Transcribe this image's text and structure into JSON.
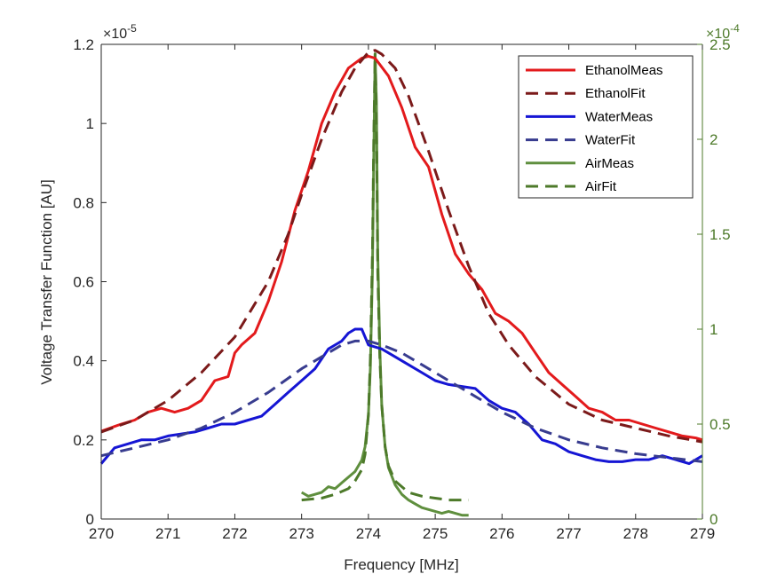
{
  "chart_data": {
    "type": "line",
    "xlabel": "Frequency [MHz]",
    "ylabel": "Voltage Transfer Function [AU]",
    "xlim": [
      270,
      279
    ],
    "ylim_left": [
      0,
      1.2e-05
    ],
    "ylim_right": [
      0,
      0.00025
    ],
    "x_ticks": [
      "270",
      "271",
      "272",
      "273",
      "274",
      "275",
      "276",
      "277",
      "278",
      "279"
    ],
    "y_ticks_left": [
      "0",
      "0.2",
      "0.4",
      "0.6",
      "0.8",
      "1",
      "1.2"
    ],
    "y_ticks_right": [
      "0",
      "0.5",
      "1",
      "1.5",
      "2",
      "2.5"
    ],
    "left_exponent": {
      "base": "×10",
      "power": "-5"
    },
    "right_exponent": {
      "base": "×10",
      "power": "-4"
    },
    "legend_position": "top-right",
    "grid": false,
    "series": [
      {
        "name": "EthanolMeas",
        "axis": "left",
        "color": "#e31a1c",
        "style": "solid",
        "x": [
          270.0,
          270.3,
          270.5,
          270.7,
          270.9,
          271.1,
          271.3,
          271.5,
          271.7,
          271.9,
          272.0,
          272.1,
          272.3,
          272.5,
          272.7,
          272.9,
          273.1,
          273.3,
          273.5,
          273.7,
          273.9,
          274.0,
          274.1,
          274.3,
          274.5,
          274.7,
          274.9,
          275.1,
          275.3,
          275.5,
          275.7,
          275.9,
          276.1,
          276.3,
          276.5,
          276.7,
          276.9,
          277.1,
          277.3,
          277.5,
          277.7,
          277.9,
          278.1,
          278.3,
          278.5,
          278.7,
          278.9,
          279.0
        ],
        "y": [
          0.222,
          0.24,
          0.25,
          0.27,
          0.28,
          0.27,
          0.28,
          0.3,
          0.35,
          0.36,
          0.42,
          0.44,
          0.47,
          0.55,
          0.65,
          0.78,
          0.88,
          1.0,
          1.08,
          1.14,
          1.165,
          1.17,
          1.165,
          1.12,
          1.04,
          0.94,
          0.89,
          0.77,
          0.67,
          0.62,
          0.58,
          0.52,
          0.5,
          0.47,
          0.42,
          0.37,
          0.34,
          0.31,
          0.28,
          0.27,
          0.25,
          0.25,
          0.24,
          0.23,
          0.22,
          0.21,
          0.205,
          0.2
        ]
      },
      {
        "name": "EthanolFit",
        "axis": "left",
        "color": "#7b1a1a",
        "style": "dashed",
        "x": [
          270.0,
          270.5,
          271.0,
          271.5,
          272.0,
          272.5,
          272.8,
          273.0,
          273.3,
          273.6,
          273.8,
          274.0,
          274.1,
          274.2,
          274.4,
          274.6,
          274.9,
          275.2,
          275.5,
          275.8,
          276.1,
          276.5,
          277.0,
          277.5,
          278.0,
          278.5,
          279.0
        ],
        "y": [
          0.22,
          0.25,
          0.3,
          0.37,
          0.46,
          0.6,
          0.72,
          0.82,
          0.96,
          1.08,
          1.14,
          1.18,
          1.185,
          1.175,
          1.14,
          1.07,
          0.93,
          0.78,
          0.64,
          0.52,
          0.44,
          0.36,
          0.29,
          0.25,
          0.23,
          0.21,
          0.195
        ]
      },
      {
        "name": "WaterMeas",
        "axis": "left",
        "color": "#1515d4",
        "style": "solid",
        "x": [
          270.0,
          270.2,
          270.4,
          270.6,
          270.8,
          271.0,
          271.2,
          271.4,
          271.6,
          271.8,
          272.0,
          272.2,
          272.4,
          272.6,
          272.8,
          273.0,
          273.2,
          273.4,
          273.6,
          273.7,
          273.8,
          273.9,
          274.0,
          274.2,
          274.4,
          274.6,
          274.8,
          275.0,
          275.2,
          275.4,
          275.6,
          275.8,
          276.0,
          276.2,
          276.4,
          276.6,
          276.8,
          277.0,
          277.2,
          277.4,
          277.6,
          277.8,
          278.0,
          278.2,
          278.4,
          278.6,
          278.8,
          279.0
        ],
        "y": [
          0.14,
          0.18,
          0.19,
          0.2,
          0.2,
          0.21,
          0.215,
          0.22,
          0.23,
          0.24,
          0.24,
          0.25,
          0.26,
          0.29,
          0.32,
          0.35,
          0.38,
          0.43,
          0.45,
          0.47,
          0.48,
          0.48,
          0.44,
          0.43,
          0.41,
          0.39,
          0.37,
          0.35,
          0.34,
          0.335,
          0.33,
          0.3,
          0.28,
          0.27,
          0.24,
          0.2,
          0.19,
          0.17,
          0.16,
          0.15,
          0.145,
          0.145,
          0.15,
          0.15,
          0.16,
          0.15,
          0.14,
          0.16
        ]
      },
      {
        "name": "WaterFit",
        "axis": "left",
        "color": "#383c8f",
        "style": "dashed",
        "x": [
          270.0,
          270.5,
          271.0,
          271.5,
          272.0,
          272.5,
          273.0,
          273.3,
          273.6,
          273.8,
          274.0,
          274.2,
          274.5,
          274.8,
          275.2,
          275.6,
          276.0,
          276.5,
          277.0,
          277.5,
          278.0,
          278.5,
          279.0
        ],
        "y": [
          0.16,
          0.18,
          0.2,
          0.23,
          0.27,
          0.32,
          0.38,
          0.41,
          0.44,
          0.45,
          0.45,
          0.44,
          0.42,
          0.39,
          0.35,
          0.31,
          0.27,
          0.23,
          0.2,
          0.18,
          0.165,
          0.155,
          0.145
        ]
      },
      {
        "name": "AirMeas",
        "axis": "right",
        "color": "#5f8f3e",
        "style": "solid",
        "x": [
          273.0,
          273.1,
          273.2,
          273.3,
          273.4,
          273.5,
          273.6,
          273.7,
          273.8,
          273.9,
          273.95,
          274.0,
          274.03,
          274.06,
          274.08,
          274.1,
          274.12,
          274.14,
          274.17,
          274.2,
          274.25,
          274.3,
          274.4,
          274.5,
          274.6,
          274.7,
          274.8,
          274.9,
          275.0,
          275.1,
          275.2,
          275.3,
          275.4,
          275.5
        ],
        "y": [
          0.14,
          0.12,
          0.13,
          0.14,
          0.17,
          0.16,
          0.19,
          0.22,
          0.25,
          0.31,
          0.38,
          0.55,
          0.8,
          1.3,
          1.9,
          2.45,
          2.2,
          1.4,
          0.9,
          0.6,
          0.38,
          0.27,
          0.18,
          0.13,
          0.1,
          0.08,
          0.06,
          0.05,
          0.04,
          0.03,
          0.04,
          0.03,
          0.02,
          0.02
        ]
      },
      {
        "name": "AirFit",
        "axis": "right",
        "color": "#4d7a2a",
        "style": "dashed",
        "x": [
          273.0,
          273.3,
          273.5,
          273.7,
          273.8,
          273.9,
          273.95,
          274.0,
          274.03,
          274.06,
          274.08,
          274.1,
          274.12,
          274.14,
          274.17,
          274.2,
          274.25,
          274.3,
          274.4,
          274.6,
          274.8,
          275.0,
          275.2,
          275.5
        ],
        "y": [
          0.1,
          0.11,
          0.13,
          0.16,
          0.2,
          0.26,
          0.34,
          0.55,
          0.85,
          1.4,
          2.0,
          2.45,
          2.1,
          1.3,
          0.85,
          0.6,
          0.38,
          0.28,
          0.2,
          0.14,
          0.12,
          0.11,
          0.1,
          0.1
        ]
      }
    ]
  }
}
